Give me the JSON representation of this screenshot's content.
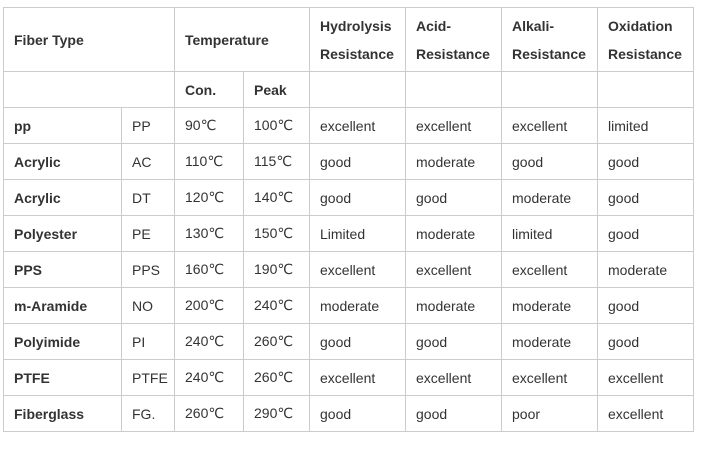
{
  "header": {
    "fiber_type": "Fiber Type",
    "temperature": "Temperature",
    "hydrolysis_1": "Hydrolysis",
    "hydrolysis_2": "Resistance",
    "acid_1": "Acid-",
    "acid_2": "Resistance",
    "alkali_1": "Alkali-",
    "alkali_2": "Resistance",
    "oxidation_1": "Oxidation",
    "oxidation_2": "Resistance",
    "con": "Con.",
    "peak": "Peak"
  },
  "rows": [
    {
      "name": "pp",
      "abbr": "PP",
      "con": "90℃",
      "peak": "100℃",
      "hydrolysis": "excellent",
      "acid": "excellent",
      "alkali": "excellent",
      "oxidation": "limited"
    },
    {
      "name": "Acrylic",
      "abbr": "AC",
      "con": "110℃",
      "peak": "115℃",
      "hydrolysis": "good",
      "acid": "moderate",
      "alkali": "good",
      "oxidation": "good"
    },
    {
      "name": "Acrylic",
      "abbr": "DT",
      "con": "120℃",
      "peak": "140℃",
      "hydrolysis": "good",
      "acid": "good",
      "alkali": "moderate",
      "oxidation": "good"
    },
    {
      "name": "Polyester",
      "abbr": "PE",
      "con": "130℃",
      "peak": "150℃",
      "hydrolysis": "Limited",
      "acid": "moderate",
      "alkali": "limited",
      "oxidation": "good"
    },
    {
      "name": "PPS",
      "abbr": "PPS",
      "con": "160℃",
      "peak": "190℃",
      "hydrolysis": "excellent",
      "acid": "excellent",
      "alkali": "excellent",
      "oxidation": "moderate"
    },
    {
      "name": "m-Aramide",
      "abbr": "NO",
      "con": "200℃",
      "peak": "240℃",
      "hydrolysis": "moderate",
      "acid": "moderate",
      "alkali": "moderate",
      "oxidation": "good"
    },
    {
      "name": "Polyimide",
      "abbr": "PI",
      "con": "240℃",
      "peak": "260℃",
      "hydrolysis": "good",
      "acid": "good",
      "alkali": "moderate",
      "oxidation": "good"
    },
    {
      "name": "PTFE",
      "abbr": "PTFE",
      "con": "240℃",
      "peak": "260℃",
      "hydrolysis": "excellent",
      "acid": "excellent",
      "alkali": "excellent",
      "oxidation": "excellent"
    },
    {
      "name": "Fiberglass",
      "abbr": "FG.",
      "con": "260℃",
      "peak": "290℃",
      "hydrolysis": "good",
      "acid": "good",
      "alkali": "poor",
      "oxidation": "excellent"
    }
  ]
}
